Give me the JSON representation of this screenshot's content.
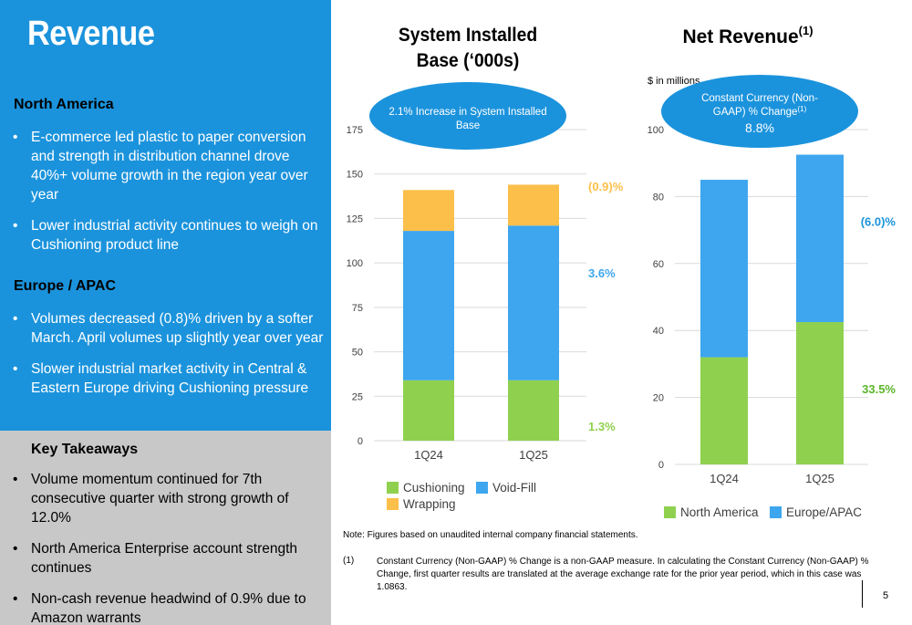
{
  "page": {
    "title": "Revenue",
    "page_number": "5"
  },
  "left": {
    "north_america": {
      "heading": "North America",
      "bullets": [
        "E-commerce led plastic to paper conversion and strength in distribution channel drove 40%+ volume growth in the region year over year",
        "Lower industrial activity continues to weigh on Cushioning product line"
      ]
    },
    "europe_apac": {
      "heading": "Europe / APAC",
      "bullets": [
        "Volumes decreased (0.8)% driven by a softer March. April volumes up slightly year over year",
        "Slower industrial market activity in Central & Eastern Europe driving Cushioning pressure"
      ]
    },
    "key_takeaways": {
      "heading": "Key Takeaways",
      "bullets": [
        "Volume momentum continued for 7th consecutive quarter with strong growth of 12.0%",
        "North America Enterprise account strength continues",
        "Non-cash revenue headwind of 0.9% due to Amazon warrants"
      ]
    }
  },
  "colors": {
    "cushioning": "#8fd14f",
    "void_fill": "#3ea6ee",
    "wrapping": "#fbbf4a",
    "north_america": "#8fd14f",
    "europe_apac": "#3ea6ee",
    "bubble": "#1b93dc",
    "axis_text": "#404040"
  },
  "chart_data": [
    {
      "type": "bar",
      "stacked": true,
      "title_line1": "System Installed",
      "title_line2": "Base (‘000s)",
      "callout": "2.1% Increase in System Installed Base",
      "categories": [
        "1Q24",
        "1Q25"
      ],
      "series": [
        {
          "name": "Cushioning",
          "key": "cushioning",
          "values": [
            34,
            34
          ],
          "change_label": "1.3%",
          "label_color": "#8fd14f"
        },
        {
          "name": "Void-Fill",
          "key": "void_fill",
          "values": [
            84,
            87
          ],
          "change_label": "3.6%",
          "label_color": "#3ea6ee"
        },
        {
          "name": "Wrapping",
          "key": "wrapping",
          "values": [
            23,
            23
          ],
          "change_label": "(0.9)%",
          "label_color": "#fbbf4a"
        }
      ],
      "yticks": [
        0,
        25,
        50,
        75,
        100,
        125,
        150,
        175
      ],
      "ylim": [
        0,
        175
      ],
      "grid": true,
      "legend": [
        "Cushioning",
        "Void-Fill",
        "Wrapping"
      ]
    },
    {
      "type": "bar",
      "stacked": true,
      "title": "Net Revenue",
      "title_superscript": "(1)",
      "unit_label": "$ in millions",
      "callout_line1": "Constant Currency (Non-",
      "callout_line2": "GAAP) % Change",
      "callout_superscript": "(1)",
      "callout_value": "8.8%",
      "categories": [
        "1Q24",
        "1Q25"
      ],
      "series": [
        {
          "name": "North America",
          "key": "north_america",
          "values": [
            32,
            42.5
          ],
          "change_label": "33.5%",
          "label_color": "#5ab52a"
        },
        {
          "name": "Europe/APAC",
          "key": "europe_apac",
          "values": [
            53,
            50
          ],
          "change_label": "(6.0)%",
          "label_color": "#1b93dc"
        }
      ],
      "yticks": [
        0,
        20,
        40,
        60,
        80,
        100
      ],
      "ylim": [
        0,
        100
      ],
      "grid": true,
      "legend": [
        "North America",
        "Europe/APAC"
      ]
    }
  ],
  "footer": {
    "note": "Note: Figures based on unaudited internal company financial statements.",
    "footnote_number": "(1)",
    "footnote_text": "Constant Currency (Non-GAAP) % Change is a non-GAAP measure. In calculating the Constant Currency (Non-GAAP) % Change, first quarter results are translated at the average exchange rate for the prior year period, which in this case was 1.0863."
  }
}
